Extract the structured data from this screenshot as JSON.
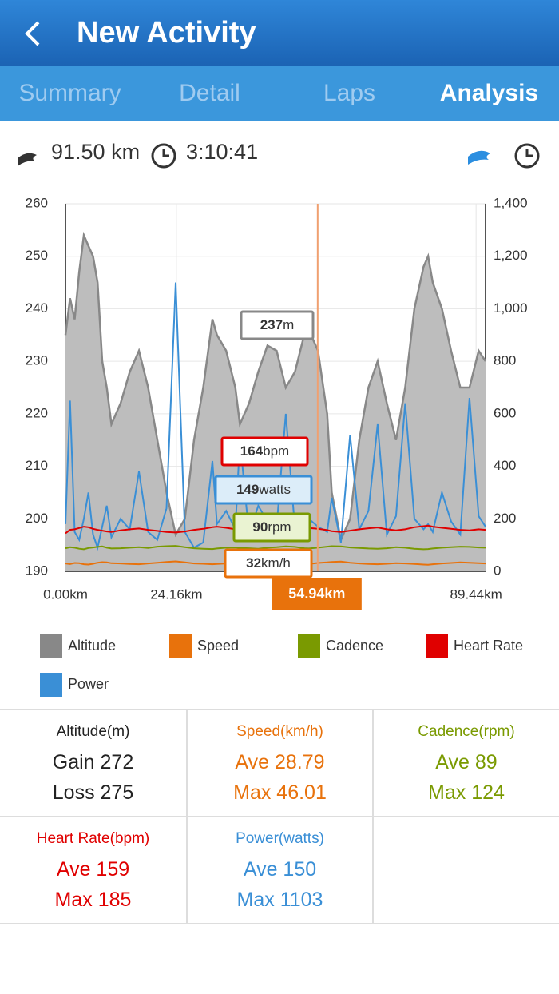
{
  "header": {
    "title": "New Activity"
  },
  "tabs": [
    "Summary",
    "Detail",
    "Laps",
    "Analysis"
  ],
  "summary": {
    "distance": "91.50 km",
    "duration": "3:10:41"
  },
  "chart_data": {
    "type": "line",
    "x": [
      0,
      1,
      2,
      3,
      4,
      5,
      6,
      7,
      8,
      9,
      10,
      12,
      14,
      16,
      18,
      20,
      22,
      24,
      26,
      28,
      30,
      32,
      33,
      35,
      37,
      38,
      40,
      42,
      44,
      46,
      48,
      50,
      52,
      53,
      55,
      57,
      58,
      60,
      62,
      64,
      66,
      68,
      70,
      72,
      74,
      76,
      78,
      79,
      80,
      82,
      84,
      86,
      88,
      90,
      91.5
    ],
    "xlim": [
      0,
      91.5
    ],
    "xticks": [
      {
        "value": 0,
        "label": "0.00km"
      },
      {
        "value": 24.16,
        "label": "24.16km"
      },
      {
        "value": 89.44,
        "label": "89.44km"
      }
    ],
    "ylim": [
      190,
      260
    ],
    "yticks": [
      190,
      200,
      210,
      220,
      230,
      240,
      250,
      260
    ],
    "y2lim": [
      0,
      1400
    ],
    "y2ticks": [
      0,
      200,
      400,
      600,
      800,
      {
        "value": 1000,
        "label": "1,000"
      },
      {
        "value": 1200,
        "label": "1,200"
      },
      {
        "value": 1400,
        "label": "1,400"
      }
    ],
    "grid": true,
    "series": [
      {
        "name": "Altitude",
        "color": "#888888",
        "area": true,
        "values": [
          235,
          242,
          238,
          247,
          254,
          252,
          250,
          245,
          230,
          225,
          218,
          222,
          228,
          232,
          225,
          215,
          205,
          197,
          200,
          215,
          225,
          238,
          235,
          232,
          225,
          218,
          222,
          228,
          233,
          232,
          225,
          228,
          235,
          236,
          232,
          220,
          205,
          196,
          200,
          215,
          225,
          230,
          222,
          215,
          225,
          240,
          248,
          250,
          245,
          240,
          232,
          225,
          225,
          232,
          230
        ]
      },
      {
        "name": "Speed",
        "color": "#e8720c",
        "axis": "y2",
        "values": [
          30,
          28,
          32,
          31,
          27,
          26,
          29,
          33,
          35,
          34,
          31,
          30,
          28,
          27,
          30,
          33,
          36,
          38,
          34,
          30,
          29,
          27,
          28,
          30,
          32,
          31,
          29,
          28,
          30,
          31,
          33,
          32,
          29,
          28,
          32,
          34,
          36,
          37,
          33,
          30,
          28,
          27,
          29,
          31,
          30,
          28,
          26,
          25,
          27,
          30,
          32,
          34,
          33,
          31,
          30
        ]
      },
      {
        "name": "Cadence",
        "color": "#7a9a01",
        "axis": "y2",
        "values": [
          88,
          92,
          90,
          86,
          84,
          89,
          91,
          93,
          95,
          90,
          87,
          88,
          90,
          92,
          89,
          94,
          96,
          97,
          92,
          88,
          86,
          85,
          87,
          90,
          91,
          89,
          88,
          86,
          90,
          92,
          95,
          93,
          88,
          87,
          90,
          94,
          96,
          95,
          91,
          89,
          87,
          86,
          88,
          92,
          90,
          86,
          84,
          85,
          87,
          90,
          92,
          94,
          93,
          91,
          90
        ]
      },
      {
        "name": "Heart Rate",
        "color": "#e00000",
        "axis": "y2",
        "values": [
          145,
          158,
          160,
          165,
          170,
          168,
          162,
          158,
          155,
          152,
          150,
          156,
          160,
          163,
          158,
          154,
          150,
          148,
          152,
          158,
          162,
          168,
          170,
          166,
          160,
          158,
          160,
          163,
          166,
          165,
          162,
          160,
          164,
          165,
          162,
          157,
          153,
          150,
          155,
          160,
          164,
          167,
          160,
          156,
          160,
          168,
          172,
          174,
          170,
          166,
          162,
          158,
          156,
          160,
          158
        ]
      },
      {
        "name": "Power",
        "color": "#3a8fd6",
        "axis": "y2",
        "values": [
          180,
          650,
          150,
          120,
          200,
          300,
          140,
          90,
          170,
          250,
          130,
          200,
          160,
          380,
          150,
          120,
          240,
          1100,
          150,
          90,
          110,
          420,
          180,
          230,
          160,
          500,
          140,
          250,
          190,
          170,
          600,
          160,
          130,
          200,
          170,
          150,
          280,
          110,
          520,
          160,
          230,
          560,
          140,
          210,
          640,
          200,
          160,
          180,
          150,
          300,
          190,
          140,
          660,
          210,
          170
        ]
      }
    ],
    "cursor": {
      "value": 54.94,
      "label": "54.94km"
    },
    "tooltips": [
      {
        "value": 237,
        "unit": "m"
      },
      {
        "value": 164,
        "unit": "bpm"
      },
      {
        "value": 149,
        "unit": "watts"
      },
      {
        "value": 90,
        "unit": "rpm"
      },
      {
        "value": 32,
        "unit": "km/h"
      }
    ]
  },
  "stats": [
    {
      "title": "Altitude(m)",
      "lines": [
        "Gain 272",
        "Loss 275"
      ],
      "color": "#222222"
    },
    {
      "title": "Speed(km/h)",
      "lines": [
        "Ave 28.79",
        "Max 46.01"
      ],
      "color": "#e8720c"
    },
    {
      "title": "Cadence(rpm)",
      "lines": [
        "Ave 89",
        "Max 124"
      ],
      "color": "#7a9a01"
    },
    {
      "title": "Heart Rate(bpm)",
      "lines": [
        "Ave 159",
        "Max 185"
      ],
      "color": "#e00000"
    },
    {
      "title": "Power(watts)",
      "lines": [
        "Ave 150",
        "Max 1103"
      ],
      "color": "#3a8fd6"
    }
  ]
}
